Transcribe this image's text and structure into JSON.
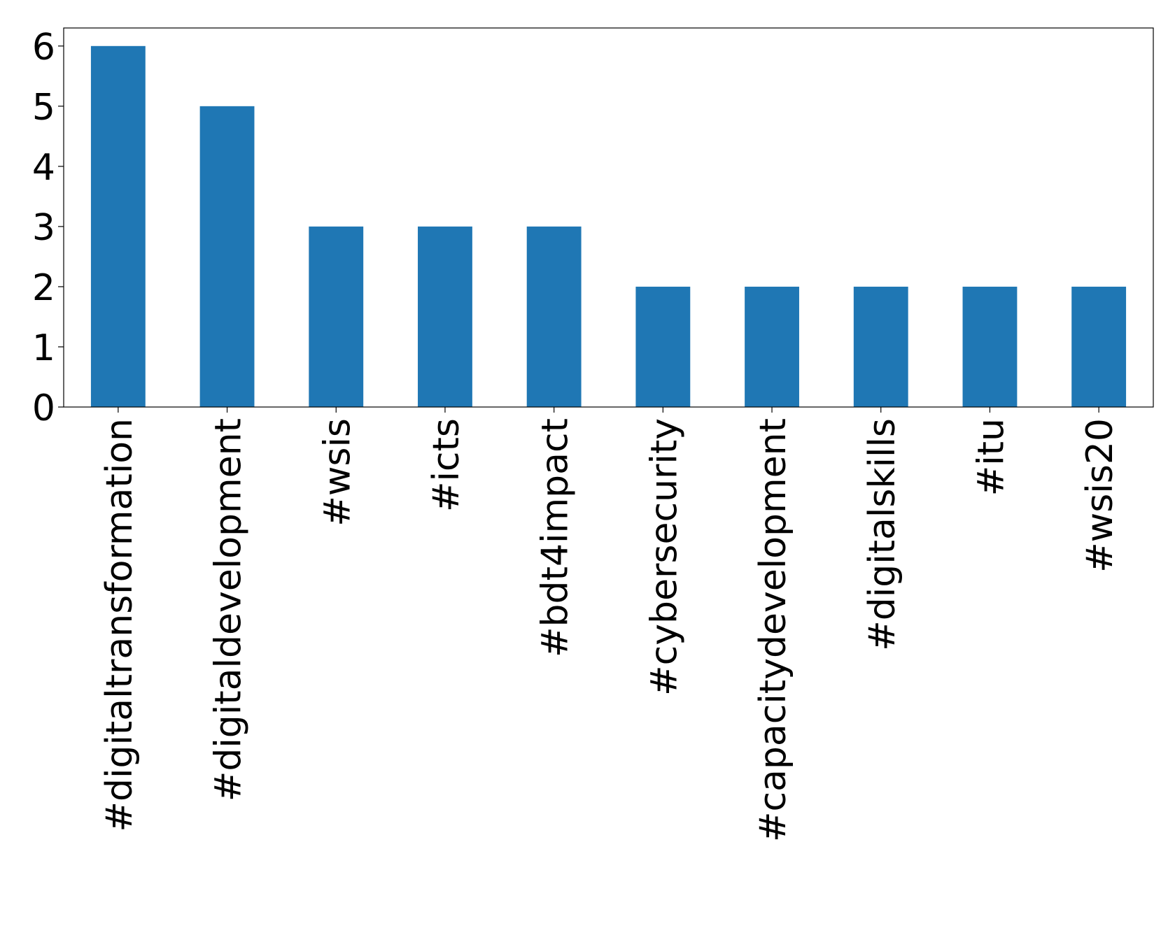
{
  "chart_data": {
    "type": "bar",
    "categories": [
      "#digitaltransformation",
      "#digitaldevelopment",
      "#wsis",
      "#icts",
      "#bdt4impact",
      "#cybersecurity",
      "#capacitydevelopment",
      "#digitalskills",
      "#itu",
      "#wsis20"
    ],
    "values": [
      6,
      5,
      3,
      3,
      3,
      2,
      2,
      2,
      2,
      2
    ],
    "color": "#1f77b4",
    "ylim": [
      0,
      6.3
    ],
    "yticks": [
      0,
      1,
      2,
      3,
      4,
      5,
      6
    ],
    "grid": false
  }
}
